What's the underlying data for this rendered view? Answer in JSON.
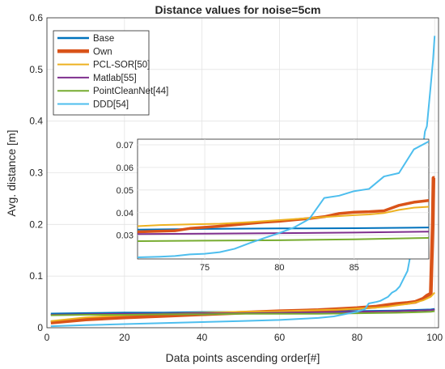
{
  "chart_data": {
    "type": "line",
    "title": "Distance values for noise=5cm",
    "xlabel": "Data points ascending order[#]",
    "ylabel": "Avg. distance [m]",
    "xlim": [
      0,
      101
    ],
    "ylim": [
      0,
      0.6
    ],
    "xticks": [
      0,
      20,
      40,
      60,
      80,
      100
    ],
    "yticks": [
      0,
      0.1,
      0.2,
      0.3,
      0.4,
      0.5,
      0.6
    ],
    "xtick_labels": [
      "0",
      "20",
      "40",
      "60",
      "80",
      "100"
    ],
    "ytick_labels": [
      "0",
      "0.1",
      "0.2",
      "0.3",
      "0.4",
      "0.5",
      "0.6"
    ],
    "grid": true,
    "legend_position": "top-left",
    "series": [
      {
        "name": "Base",
        "color": "#0072BD",
        "width": 2.5,
        "points": [
          [
            1,
            0.027
          ],
          [
            10,
            0.028
          ],
          [
            20,
            0.029
          ],
          [
            30,
            0.029
          ],
          [
            40,
            0.03
          ],
          [
            50,
            0.03
          ],
          [
            60,
            0.031
          ],
          [
            70,
            0.031
          ],
          [
            80,
            0.032
          ],
          [
            90,
            0.033
          ],
          [
            95,
            0.034
          ],
          [
            99,
            0.035
          ],
          [
            100,
            0.036
          ]
        ]
      },
      {
        "name": "Own",
        "color": "#D95319",
        "width": 4.5,
        "points": [
          [
            1,
            0.01
          ],
          [
            10,
            0.016
          ],
          [
            20,
            0.02
          ],
          [
            30,
            0.023
          ],
          [
            40,
            0.026
          ],
          [
            50,
            0.029
          ],
          [
            60,
            0.032
          ],
          [
            65,
            0.033
          ],
          [
            70,
            0.034
          ],
          [
            75,
            0.036
          ],
          [
            80,
            0.038
          ],
          [
            85,
            0.041
          ],
          [
            88,
            0.044
          ],
          [
            90,
            0.046
          ],
          [
            93,
            0.048
          ],
          [
            95,
            0.05
          ],
          [
            97,
            0.056
          ],
          [
            98,
            0.062
          ],
          [
            99,
            0.066
          ],
          [
            99.5,
            0.2
          ],
          [
            99.7,
            0.29
          ],
          [
            100,
            0.29
          ]
        ]
      },
      {
        "name": "PCL-SOR[50]",
        "color": "#EDB120",
        "width": 2,
        "points": [
          [
            1,
            0.013
          ],
          [
            10,
            0.02
          ],
          [
            20,
            0.024
          ],
          [
            30,
            0.027
          ],
          [
            40,
            0.029
          ],
          [
            50,
            0.031
          ],
          [
            60,
            0.032
          ],
          [
            70,
            0.034
          ],
          [
            75,
            0.035
          ],
          [
            80,
            0.037
          ],
          [
            85,
            0.039
          ],
          [
            88,
            0.041
          ],
          [
            90,
            0.043
          ],
          [
            93,
            0.046
          ],
          [
            95,
            0.049
          ],
          [
            97,
            0.053
          ],
          [
            99,
            0.06
          ],
          [
            100,
            0.068
          ]
        ]
      },
      {
        "name": "Matlab[55]",
        "color": "#7E2F8E",
        "width": 2,
        "points": [
          [
            1,
            0.025
          ],
          [
            10,
            0.026
          ],
          [
            20,
            0.027
          ],
          [
            30,
            0.027
          ],
          [
            40,
            0.028
          ],
          [
            50,
            0.028
          ],
          [
            60,
            0.029
          ],
          [
            70,
            0.03
          ],
          [
            80,
            0.031
          ],
          [
            90,
            0.032
          ],
          [
            95,
            0.033
          ],
          [
            99,
            0.034
          ],
          [
            100,
            0.035
          ]
        ]
      },
      {
        "name": "PointCleanNet[44]",
        "color": "#77AC30",
        "width": 2,
        "points": [
          [
            1,
            0.024
          ],
          [
            10,
            0.025
          ],
          [
            20,
            0.025
          ],
          [
            30,
            0.026
          ],
          [
            40,
            0.026
          ],
          [
            50,
            0.027
          ],
          [
            60,
            0.027
          ],
          [
            70,
            0.027
          ],
          [
            80,
            0.028
          ],
          [
            90,
            0.029
          ],
          [
            95,
            0.03
          ],
          [
            99,
            0.031
          ],
          [
            100,
            0.032
          ]
        ]
      },
      {
        "name": "DDD[54]",
        "color": "#4DBEEE",
        "width": 2,
        "points": [
          [
            1,
            0.003
          ],
          [
            10,
            0.005
          ],
          [
            20,
            0.007
          ],
          [
            30,
            0.009
          ],
          [
            40,
            0.011
          ],
          [
            50,
            0.013
          ],
          [
            60,
            0.015
          ],
          [
            65,
            0.017
          ],
          [
            70,
            0.019
          ],
          [
            74,
            0.022
          ],
          [
            78,
            0.028
          ],
          [
            80,
            0.031
          ],
          [
            82,
            0.036
          ],
          [
            83,
            0.047
          ],
          [
            85,
            0.05
          ],
          [
            86,
            0.052
          ],
          [
            87,
            0.056
          ],
          [
            88,
            0.06
          ],
          [
            89,
            0.068
          ],
          [
            90,
            0.072
          ],
          [
            91,
            0.08
          ],
          [
            92,
            0.095
          ],
          [
            93,
            0.11
          ],
          [
            94,
            0.15
          ],
          [
            95,
            0.2
          ],
          [
            96,
            0.26
          ],
          [
            97,
            0.35
          ],
          [
            97.5,
            0.38
          ],
          [
            98,
            0.39
          ],
          [
            99,
            0.47
          ],
          [
            99.6,
            0.52
          ],
          [
            100,
            0.565
          ]
        ]
      }
    ],
    "inset": {
      "xlim": [
        70.5,
        90
      ],
      "ylim": [
        0.0195,
        0.0725
      ],
      "xticks": [
        75,
        80,
        85
      ],
      "yticks": [
        0.03,
        0.04,
        0.05,
        0.06,
        0.07
      ],
      "xtick_labels": [
        "75",
        "80",
        "85"
      ],
      "ytick_labels": [
        "0.03",
        "0.04",
        "0.05",
        "0.06",
        "0.07"
      ],
      "series": [
        {
          "name": "Base",
          "color": "#0072BD",
          "width": 2,
          "points": [
            [
              70.5,
              0.0325
            ],
            [
              75,
              0.0328
            ],
            [
              80,
              0.033
            ],
            [
              85,
              0.0331
            ],
            [
              90,
              0.0334
            ]
          ]
        },
        {
          "name": "Own",
          "color": "#D95319",
          "width": 3.5,
          "points": [
            [
              70.5,
              0.0315
            ],
            [
              73,
              0.032
            ],
            [
              74,
              0.033
            ],
            [
              76,
              0.034
            ],
            [
              78,
              0.0352
            ],
            [
              79,
              0.0358
            ],
            [
              80,
              0.0362
            ],
            [
              81,
              0.0368
            ],
            [
              82,
              0.0374
            ],
            [
              83,
              0.0382
            ],
            [
              84,
              0.0396
            ],
            [
              85,
              0.0402
            ],
            [
              86,
              0.0404
            ],
            [
              87,
              0.0408
            ],
            [
              88,
              0.0432
            ],
            [
              89,
              0.0446
            ],
            [
              90,
              0.0454
            ]
          ]
        },
        {
          "name": "PCL-SOR[50]",
          "color": "#EDB120",
          "width": 2,
          "points": [
            [
              70.5,
              0.034
            ],
            [
              72,
              0.0345
            ],
            [
              74,
              0.0348
            ],
            [
              76,
              0.0351
            ],
            [
              78,
              0.0358
            ],
            [
              80,
              0.0367
            ],
            [
              82,
              0.0376
            ],
            [
              84,
              0.0385
            ],
            [
              85,
              0.0389
            ],
            [
              86,
              0.0392
            ],
            [
              87,
              0.0398
            ],
            [
              88,
              0.0412
            ],
            [
              89,
              0.0422
            ],
            [
              90,
              0.0426
            ]
          ]
        },
        {
          "name": "Matlab[55]",
          "color": "#7E2F8E",
          "width": 2,
          "points": [
            [
              70.5,
              0.0305
            ],
            [
              75,
              0.0307
            ],
            [
              80,
              0.0309
            ],
            [
              85,
              0.0312
            ],
            [
              90,
              0.0316
            ]
          ]
        },
        {
          "name": "PointCleanNet[44]",
          "color": "#77AC30",
          "width": 2,
          "points": [
            [
              70.5,
              0.0274
            ],
            [
              75,
              0.0276
            ],
            [
              80,
              0.0278
            ],
            [
              85,
              0.0282
            ],
            [
              90,
              0.0288
            ]
          ]
        },
        {
          "name": "DDD[54]",
          "color": "#4DBEEE",
          "width": 2,
          "points": [
            [
              70.5,
              0.0202
            ],
            [
              72,
              0.0205
            ],
            [
              73,
              0.0208
            ],
            [
              74,
              0.0215
            ],
            [
              75,
              0.0218
            ],
            [
              76,
              0.0225
            ],
            [
              77,
              0.024
            ],
            [
              78,
              0.0265
            ],
            [
              79,
              0.0288
            ],
            [
              80,
              0.031
            ],
            [
              81,
              0.0335
            ],
            [
              82,
              0.0372
            ],
            [
              83,
              0.0465
            ],
            [
              84,
              0.0475
            ],
            [
              85,
              0.0495
            ],
            [
              86,
              0.0505
            ],
            [
              87,
              0.056
            ],
            [
              88,
              0.0575
            ],
            [
              89,
              0.068
            ],
            [
              90,
              0.0715
            ]
          ]
        }
      ]
    }
  }
}
